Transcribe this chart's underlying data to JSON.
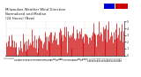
{
  "background_color": "#ffffff",
  "plot_bg_color": "#ffffff",
  "bar_color": "#cc0000",
  "legend_box1_color": "#0000cc",
  "legend_box2_color": "#cc0000",
  "ylim_min": 0,
  "ylim_max": 5,
  "n_points": 144,
  "grid_color": "#bbbbbb",
  "title_fontsize": 2.8,
  "tick_fontsize": 2.5,
  "title_text": "Milwaukee Weather Wind Direction\nNormalized and Median\n(24 Hours) (New)"
}
